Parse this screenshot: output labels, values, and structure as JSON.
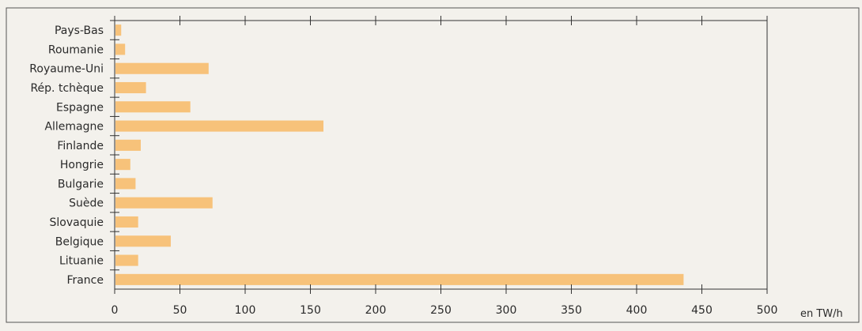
{
  "chart_data": {
    "type": "bar",
    "orientation": "horizontal",
    "categories": [
      "Pays-Bas",
      "Roumanie",
      "Royaume-Uni",
      "Rép. tchèque",
      "Espagne",
      "Allemagne",
      "Finlande",
      "Hongrie",
      "Bulgarie",
      "Suède",
      "Slovaquie",
      "Belgique",
      "Lituanie",
      "France"
    ],
    "values": [
      5,
      8,
      72,
      24,
      58,
      160,
      20,
      12,
      16,
      75,
      18,
      43,
      18,
      436
    ],
    "xlim": [
      0,
      500
    ],
    "xticks": [
      0,
      50,
      100,
      150,
      200,
      250,
      300,
      350,
      400,
      450,
      500
    ],
    "xlabel": "en TW/h",
    "title": "",
    "grid": false,
    "legend": "none",
    "colors": {
      "bar": "#f7c27a",
      "axis": "#333333",
      "frame": "#555555",
      "background": "#f3f1ec"
    }
  }
}
